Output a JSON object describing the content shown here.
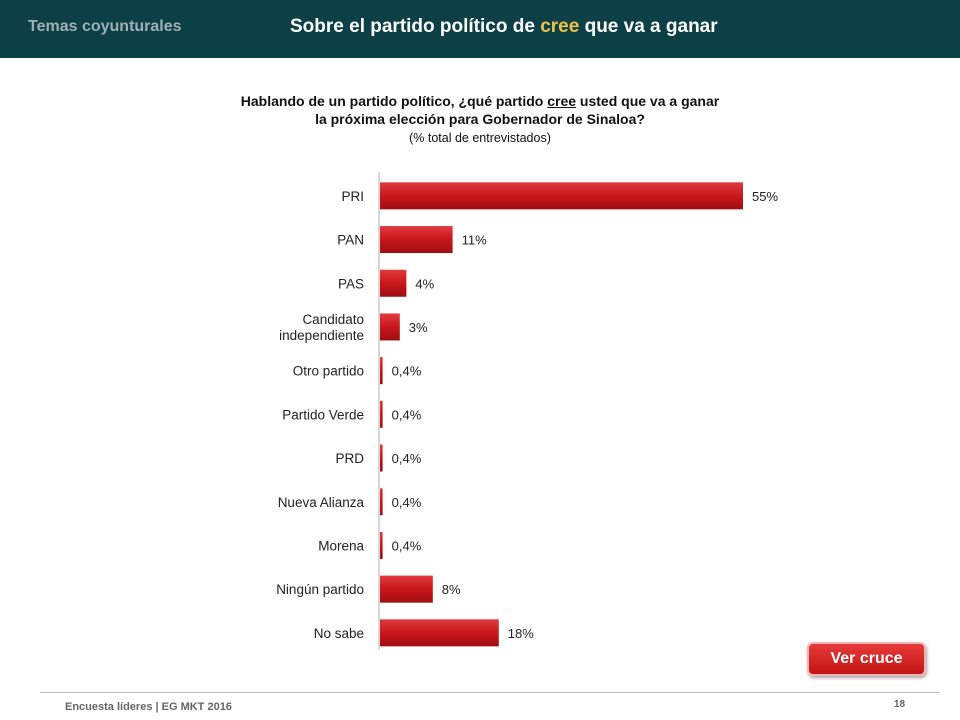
{
  "header": {
    "section_label": "Temas coyunturales",
    "title_before": "Sobre el partido político de ",
    "title_highlight": "cree",
    "title_after": " que va a ganar",
    "bg_color": "#0d3f47",
    "highlight_color": "#f0c24a"
  },
  "question": {
    "line1_before": "Hablando de un partido político, ¿qué partido ",
    "line1_underlined": "cree",
    "line1_after": " usted que va a ganar",
    "line2": "la próxima elección para Gobernador de Sinaloa?",
    "line3": "(% total de entrevistados)"
  },
  "chart_data": {
    "type": "bar",
    "orientation": "horizontal",
    "categories": [
      "PRI",
      "PAN",
      "PAS",
      "Candidato independiente",
      "Otro partido",
      "Partido Verde",
      "PRD",
      "Nueva Alianza",
      "Morena",
      "Ningún partido",
      "No sabe"
    ],
    "values": [
      55,
      11,
      4,
      3,
      0.4,
      0.4,
      0.4,
      0.4,
      0.4,
      8,
      18
    ],
    "data_labels": [
      "55%",
      "11%",
      "4%",
      "3%",
      "0,4%",
      "0,4%",
      "0,4%",
      "0,4%",
      "0,4%",
      "8%",
      "18%"
    ],
    "xlim": [
      0,
      55
    ],
    "bar_color": "#c8171c",
    "grid": false,
    "legend": "none"
  },
  "actions": {
    "ver_cruce": "Ver cruce"
  },
  "footer": {
    "source": "Encuesta líderes | EG MKT 2016",
    "page_number": "18"
  }
}
